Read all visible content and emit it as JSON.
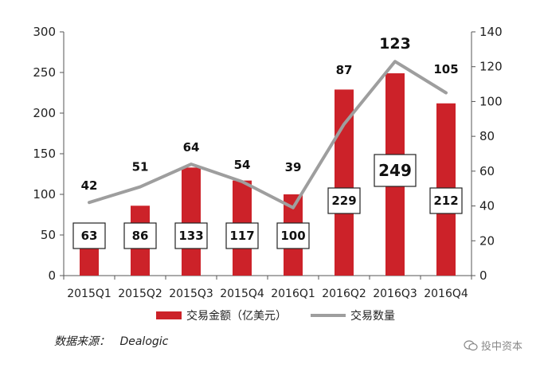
{
  "chart_data": {
    "type": "bar",
    "categories": [
      "2015Q1",
      "2015Q2",
      "2015Q3",
      "2015Q4",
      "2016Q1",
      "2016Q2",
      "2016Q3",
      "2016Q4"
    ],
    "series": [
      {
        "name": "交易金额（亿美元）",
        "type": "bar",
        "axis": "left",
        "values": [
          63,
          86,
          133,
          117,
          100,
          229,
          249,
          212
        ],
        "color": "#cc2229"
      },
      {
        "name": "交易数量",
        "type": "line",
        "axis": "right",
        "values": [
          42,
          51,
          64,
          54,
          39,
          87,
          123,
          105
        ],
        "color": "#9e9e9e"
      }
    ],
    "y_left": {
      "min": 0,
      "max": 300,
      "ticks": [
        0,
        50,
        100,
        150,
        200,
        250,
        300
      ]
    },
    "y_right": {
      "min": 0,
      "max": 140,
      "ticks": [
        0,
        20,
        40,
        60,
        80,
        100,
        120,
        140
      ]
    },
    "grid": false,
    "legend_position": "bottom"
  },
  "legend": {
    "bar_label": "交易金额（亿美元）",
    "line_label": "交易数量"
  },
  "source": {
    "label": "数据来源：",
    "value": "Dealogic"
  },
  "watermark": {
    "text": "投中资本"
  }
}
